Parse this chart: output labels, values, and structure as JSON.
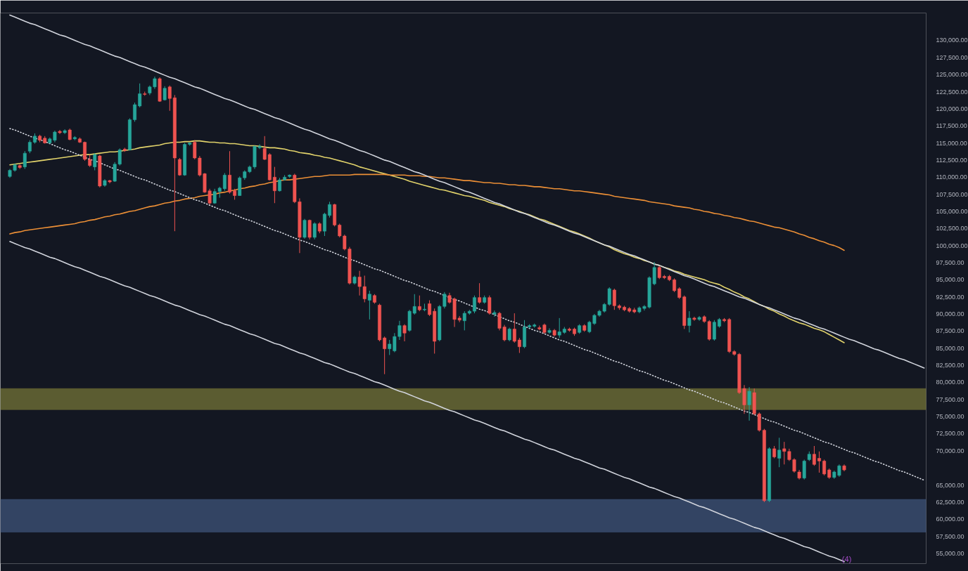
{
  "chart_data": {
    "type": "candlestick",
    "categories": [
      null,
      null,
      null,
      null,
      null,
      null,
      null,
      null,
      null,
      null,
      null,
      null,
      null,
      null,
      null,
      null,
      null,
      null,
      null,
      null,
      null,
      null,
      null,
      null,
      null,
      null,
      null,
      null,
      null,
      null,
      null,
      null,
      null,
      null,
      null,
      null,
      null,
      null,
      null,
      null,
      null,
      null,
      null,
      null,
      null,
      null,
      null,
      null,
      null,
      null,
      null,
      null,
      null,
      null,
      null,
      null,
      null,
      null,
      null,
      null,
      null,
      null,
      null,
      null,
      null,
      null,
      null,
      null,
      null,
      null,
      null,
      null,
      null,
      null,
      null,
      null,
      null,
      null,
      null,
      null,
      null,
      null,
      null,
      null,
      null,
      null,
      null,
      null,
      null,
      null,
      null,
      null,
      null,
      null,
      null,
      null,
      null,
      null,
      null,
      null,
      null,
      null,
      null,
      null,
      null,
      null,
      null,
      null,
      null,
      null,
      null,
      null,
      null,
      null,
      null,
      null,
      null,
      null,
      null,
      null,
      null,
      null,
      null,
      null,
      null,
      null,
      null,
      null,
      null,
      null,
      null,
      null,
      null,
      null,
      null,
      null,
      null,
      null,
      null,
      null,
      null,
      null,
      null,
      null,
      null,
      null,
      null,
      null,
      null,
      null,
      null,
      null,
      null,
      null,
      null,
      null,
      null,
      null,
      null,
      null,
      null,
      null,
      null,
      null,
      null,
      null,
      null,
      null,
      null,
      null,
      null,
      null,
      null,
      null,
      null,
      null,
      null,
      null,
      null,
      null,
      null,
      null,
      null,
      null
    ],
    "ohlc": [
      [
        110100,
        111200,
        109900,
        111000
      ],
      [
        111000,
        112000,
        110800,
        111800
      ],
      [
        111700,
        111900,
        111200,
        111400
      ],
      [
        111500,
        113800,
        111200,
        113500
      ],
      [
        113800,
        115400,
        113500,
        115100
      ],
      [
        115100,
        116400,
        114900,
        116000
      ],
      [
        116000,
        116200,
        115100,
        115400
      ],
      [
        115700,
        116000,
        114900,
        115000
      ],
      [
        115000,
        115800,
        114900,
        115600
      ],
      [
        115400,
        116800,
        115100,
        116600
      ],
      [
        116700,
        116900,
        116300,
        116500
      ],
      [
        116500,
        117000,
        116300,
        116800
      ],
      [
        116900,
        117100,
        115400,
        115500
      ],
      [
        115600,
        116000,
        115400,
        115800
      ],
      [
        115600,
        115800,
        115000,
        115100
      ],
      [
        115100,
        115200,
        112400,
        112600
      ],
      [
        112600,
        113300,
        111500,
        111700
      ],
      [
        111500,
        113500,
        111000,
        113300
      ],
      [
        113100,
        113300,
        108500,
        108700
      ],
      [
        108800,
        109700,
        108600,
        109500
      ],
      [
        109500,
        109600,
        109100,
        109300
      ],
      [
        109400,
        112200,
        109300,
        111900
      ],
      [
        111900,
        114200,
        111700,
        114000
      ],
      [
        114100,
        114300,
        113700,
        113900
      ],
      [
        114000,
        118600,
        113900,
        118400
      ],
      [
        118400,
        120900,
        118100,
        120600
      ],
      [
        120400,
        123700,
        120200,
        122200
      ],
      [
        122200,
        122500,
        121900,
        122100
      ],
      [
        122300,
        123400,
        122000,
        123200
      ],
      [
        123200,
        124700,
        122900,
        124400
      ],
      [
        124400,
        124600,
        121000,
        121100
      ],
      [
        121300,
        123300,
        121200,
        123000
      ],
      [
        123200,
        123400,
        119700,
        121500
      ],
      [
        121600,
        122000,
        102100,
        112800
      ],
      [
        112600,
        112800,
        110200,
        110300
      ],
      [
        110300,
        115000,
        110200,
        114800
      ],
      [
        114800,
        115100,
        114600,
        115000
      ],
      [
        115100,
        115400,
        112600,
        112800
      ],
      [
        112800,
        113100,
        110100,
        110300
      ],
      [
        110500,
        110600,
        107700,
        107800
      ],
      [
        108000,
        108300,
        106000,
        106200
      ],
      [
        106200,
        108300,
        106100,
        107900
      ],
      [
        107900,
        108600,
        107000,
        108400
      ],
      [
        108300,
        110600,
        108000,
        110300
      ],
      [
        110300,
        113800,
        107600,
        107800
      ],
      [
        108000,
        108300,
        106700,
        107300
      ],
      [
        107300,
        110100,
        107300,
        109900
      ],
      [
        109900,
        111000,
        109600,
        110800
      ],
      [
        110800,
        111700,
        110600,
        111500
      ],
      [
        111500,
        114600,
        111200,
        114500
      ],
      [
        114300,
        114800,
        114100,
        114500
      ],
      [
        114200,
        116000,
        112500,
        112600
      ],
      [
        113300,
        113500,
        109500,
        109600
      ],
      [
        110000,
        111500,
        106200,
        108000
      ],
      [
        108000,
        109900,
        107900,
        109600
      ],
      [
        109600,
        110300,
        109500,
        110000
      ],
      [
        110100,
        110400,
        109900,
        110300
      ],
      [
        110300,
        110500,
        106200,
        106400
      ],
      [
        106400,
        106900,
        98900,
        101200
      ],
      [
        101200,
        103900,
        101000,
        103700
      ],
      [
        103700,
        103800,
        100900,
        101200
      ],
      [
        101200,
        103400,
        100900,
        103200
      ],
      [
        103200,
        103400,
        101800,
        102100
      ],
      [
        102100,
        104800,
        101400,
        104600
      ],
      [
        104400,
        106400,
        104100,
        106000
      ],
      [
        106000,
        106100,
        102800,
        103000
      ],
      [
        103000,
        103200,
        101200,
        101400
      ],
      [
        101400,
        101600,
        99300,
        99500
      ],
      [
        99500,
        99800,
        94300,
        94500
      ],
      [
        94500,
        95600,
        94300,
        95400
      ],
      [
        95400,
        96300,
        92700,
        94000
      ],
      [
        94000,
        95600,
        91700,
        92200
      ],
      [
        92000,
        93400,
        89200,
        92900
      ],
      [
        92700,
        92900,
        91500,
        91700
      ],
      [
        91300,
        91500,
        86000,
        86200
      ],
      [
        86500,
        86700,
        81200,
        84900
      ],
      [
        84900,
        86200,
        84000,
        85600
      ],
      [
        84600,
        87200,
        84400,
        86700
      ],
      [
        86700,
        89000,
        86200,
        88300
      ],
      [
        88300,
        88500,
        86000,
        87200
      ],
      [
        87600,
        90600,
        87400,
        90400
      ],
      [
        90100,
        92900,
        89900,
        91100
      ],
      [
        91100,
        92700,
        90400,
        90600
      ],
      [
        90600,
        91500,
        90400,
        90700
      ],
      [
        91500,
        92000,
        89700,
        89900
      ],
      [
        90400,
        90800,
        84200,
        86000
      ],
      [
        86200,
        91300,
        86000,
        91100
      ],
      [
        91100,
        93200,
        90800,
        92900
      ],
      [
        92700,
        93100,
        91500,
        91700
      ],
      [
        92200,
        92400,
        88100,
        89200
      ],
      [
        89400,
        89700,
        88800,
        89100
      ],
      [
        89000,
        90400,
        87600,
        90100
      ],
      [
        90100,
        90600,
        89900,
        90400
      ],
      [
        90400,
        92700,
        90100,
        92400
      ],
      [
        92400,
        94500,
        91500,
        91700
      ],
      [
        91700,
        92700,
        91500,
        92400
      ],
      [
        92400,
        92700,
        89900,
        90100
      ],
      [
        90000,
        90500,
        89600,
        90200
      ],
      [
        90100,
        90300,
        87600,
        87900
      ],
      [
        88100,
        88400,
        86000,
        86200
      ],
      [
        86200,
        88000,
        86000,
        87800
      ],
      [
        87800,
        90100,
        85800,
        86000
      ],
      [
        86200,
        86500,
        84300,
        85200
      ],
      [
        85200,
        89100,
        85000,
        88100
      ],
      [
        88100,
        88500,
        87900,
        88300
      ],
      [
        88200,
        88600,
        88000,
        88400
      ],
      [
        88000,
        88300,
        87600,
        87800
      ],
      [
        88400,
        88600,
        87100,
        87300
      ],
      [
        87300,
        87900,
        87100,
        87600
      ],
      [
        87600,
        87800,
        86700,
        86900
      ],
      [
        86900,
        89400,
        86500,
        87400
      ],
      [
        87300,
        88100,
        87100,
        87800
      ],
      [
        87800,
        88000,
        87400,
        87600
      ],
      [
        87800,
        88000,
        86800,
        87100
      ],
      [
        87300,
        88500,
        87100,
        88300
      ],
      [
        88300,
        88500,
        87400,
        87600
      ],
      [
        87400,
        89000,
        87200,
        88800
      ],
      [
        88600,
        90000,
        88400,
        89800
      ],
      [
        89800,
        90600,
        89600,
        90400
      ],
      [
        90400,
        91600,
        90200,
        91400
      ],
      [
        91400,
        93900,
        91200,
        93700
      ],
      [
        93500,
        93700,
        90600,
        91200
      ],
      [
        91200,
        91400,
        90600,
        90900
      ],
      [
        91000,
        91200,
        90400,
        90600
      ],
      [
        90800,
        91000,
        90200,
        90400
      ],
      [
        90600,
        90900,
        90100,
        90300
      ],
      [
        90300,
        91100,
        90100,
        90900
      ],
      [
        90800,
        91300,
        90500,
        91100
      ],
      [
        91000,
        95500,
        90800,
        95300
      ],
      [
        94400,
        97600,
        94200,
        96800
      ],
      [
        96800,
        97000,
        95100,
        95300
      ],
      [
        95500,
        95700,
        95100,
        95300
      ],
      [
        95500,
        95700,
        94800,
        95000
      ],
      [
        95000,
        95200,
        93200,
        93400
      ],
      [
        93700,
        93900,
        92200,
        92400
      ],
      [
        92500,
        92700,
        87800,
        88300
      ],
      [
        88300,
        90400,
        87300,
        89400
      ],
      [
        89400,
        89600,
        89000,
        89200
      ],
      [
        89200,
        89700,
        89000,
        89500
      ],
      [
        89600,
        89800,
        88700,
        88900
      ],
      [
        88900,
        89100,
        86100,
        86300
      ],
      [
        86300,
        89100,
        86100,
        88800
      ],
      [
        88200,
        89400,
        88000,
        89200
      ],
      [
        89200,
        89400,
        88800,
        89000
      ],
      [
        89200,
        89400,
        84300,
        84500
      ],
      [
        84500,
        84700,
        83900,
        84100
      ],
      [
        84100,
        84300,
        78300,
        78500
      ],
      [
        79100,
        79600,
        75400,
        76700
      ],
      [
        76700,
        79300,
        74400,
        78700
      ],
      [
        78500,
        79100,
        75200,
        75400
      ],
      [
        75400,
        75600,
        72800,
        73000
      ],
      [
        73000,
        73200,
        62500,
        62700
      ],
      [
        62700,
        70500,
        62500,
        70300
      ],
      [
        70300,
        70700,
        68900,
        69100
      ],
      [
        68900,
        71900,
        67600,
        70100
      ],
      [
        70300,
        71300,
        68000,
        69900
      ],
      [
        69900,
        70300,
        68500,
        68700
      ],
      [
        68700,
        68900,
        66800,
        67000
      ],
      [
        66900,
        67200,
        65800,
        66000
      ],
      [
        66000,
        68700,
        65800,
        68500
      ],
      [
        68700,
        69900,
        68500,
        69500
      ],
      [
        69500,
        70700,
        67800,
        68000
      ],
      [
        68900,
        69900,
        66800,
        68500
      ],
      [
        68500,
        68700,
        66400,
        66600
      ],
      [
        67200,
        67400,
        65900,
        66100
      ],
      [
        66100,
        67100,
        65900,
        66900
      ],
      [
        66400,
        68000,
        66200,
        67800
      ],
      [
        67800,
        68000,
        67000,
        67200
      ],
      null,
      null,
      null,
      null,
      null,
      null,
      null,
      null,
      null,
      null,
      null,
      null,
      null,
      null,
      null,
      null
    ],
    "colors": [
      "#26a69a",
      "#26a69a",
      "#ef5350",
      "#26a69a",
      "#26a69a",
      "#26a69a",
      "#ef5350",
      "#ef5350",
      "#26a69a",
      "#26a69a",
      "#ef5350",
      "#26a69a",
      "#ef5350",
      "#26a69a",
      "#ef5350",
      "#ef5350",
      "#ef5350",
      "#26a69a",
      "#ef5350",
      "#26a69a",
      "#ef5350",
      "#26a69a",
      "#26a69a",
      "#ef5350",
      "#26a69a",
      "#26a69a",
      "#26a69a",
      "#ef5350",
      "#26a69a",
      "#26a69a",
      "#ef5350",
      "#26a69a",
      "#ef5350",
      "#ef5350",
      "#ef5350",
      "#26a69a",
      "#26a69a",
      "#ef5350",
      "#ef5350",
      "#ef5350",
      "#ef5350",
      "#26a69a",
      "#26a69a",
      "#26a69a",
      "#ef5350",
      "#ef5350",
      "#26a69a",
      "#26a69a",
      "#26a69a",
      "#26a69a",
      "#26a69a",
      "#ef5350",
      "#ef5350",
      "#ef5350",
      "#26a69a",
      "#26a69a",
      "#26a69a",
      "#ef5350",
      "#ef5350",
      "#26a69a",
      "#ef5350",
      "#26a69a",
      "#ef5350",
      "#26a69a",
      "#26a69a",
      "#ef5350",
      "#ef5350",
      "#ef5350",
      "#ef5350",
      "#26a69a",
      "#ef5350",
      "#ef5350",
      "#26a69a",
      "#ef5350",
      "#ef5350",
      "#ef5350",
      "#26a69a",
      "#26a69a",
      "#26a69a",
      "#ef5350",
      "#26a69a",
      "#26a69a",
      "#ef5350",
      "#26a69a",
      "#ef5350",
      "#ef5350",
      "#26a69a",
      "#26a69a",
      "#ef5350",
      "#ef5350",
      "#ef5350",
      "#26a69a",
      "#26a69a",
      "#26a69a",
      "#ef5350",
      "#26a69a",
      "#ef5350",
      "#26a69a",
      "#ef5350",
      "#ef5350",
      "#26a69a",
      "#ef5350",
      "#ef5350",
      "#26a69a",
      "#26a69a",
      "#26a69a",
      "#ef5350",
      "#ef5350",
      "#26a69a",
      "#ef5350",
      "#26a69a",
      "#26a69a",
      "#ef5350",
      "#ef5350",
      "#26a69a",
      "#ef5350",
      "#26a69a",
      "#26a69a",
      "#26a69a",
      "#26a69a",
      "#26a69a",
      "#ef5350",
      "#ef5350",
      "#ef5350",
      "#ef5350",
      "#ef5350",
      "#26a69a",
      "#26a69a",
      "#26a69a",
      "#26a69a",
      "#ef5350",
      "#ef5350",
      "#ef5350",
      "#ef5350",
      "#ef5350",
      "#ef5350",
      "#26a69a",
      "#ef5350",
      "#26a69a",
      "#ef5350",
      "#ef5350",
      "#26a69a",
      "#26a69a",
      "#ef5350",
      "#ef5350",
      "#ef5350",
      "#ef5350",
      "#ef5350",
      "#26a69a",
      "#ef5350",
      "#ef5350",
      "#ef5350",
      "#26a69a",
      "#ef5350",
      "#26a69a",
      "#ef5350",
      "#ef5350",
      "#ef5350",
      "#ef5350",
      "#26a69a",
      "#26a69a",
      "#ef5350",
      "#ef5350",
      "#ef5350",
      "#ef5350",
      "#26a69a",
      "#26a69a",
      "#ef5350",
      null,
      null,
      null,
      null,
      null,
      null,
      null,
      null,
      null,
      null,
      null,
      null,
      null,
      null,
      null,
      null
    ],
    "series": [
      {
        "type": "line",
        "color": "#e2d36b",
        "values": [
          111800,
          111900,
          112000,
          112100,
          112200,
          112300,
          112400,
          112500,
          112600,
          112700,
          112800,
          112900,
          113000,
          113100,
          113200,
          113300,
          113300,
          113400,
          113500,
          113600,
          113700,
          113700,
          113800,
          113900,
          114000,
          114100,
          114300,
          114400,
          114500,
          114600,
          114700,
          114900,
          115000,
          115100,
          115100,
          115200,
          115200,
          115300,
          115300,
          115200,
          115100,
          115100,
          115000,
          115000,
          114900,
          114900,
          114800,
          114700,
          114600,
          114600,
          114500,
          114400,
          114300,
          114300,
          114200,
          114100,
          113900,
          113800,
          113600,
          113500,
          113400,
          113200,
          113100,
          112900,
          112800,
          112600,
          112400,
          112200,
          112000,
          111800,
          111500,
          111300,
          111100,
          110900,
          110700,
          110500,
          110300,
          110100,
          109900,
          109700,
          109400,
          109200,
          109000,
          108800,
          108600,
          108400,
          108200,
          108100,
          107900,
          107700,
          107500,
          107300,
          107200,
          107000,
          106800,
          106600,
          106300,
          106100,
          105900,
          105700,
          105400,
          105200,
          105000,
          104700,
          104500,
          104200,
          103900,
          103700,
          103400,
          103100,
          102800,
          102500,
          102200,
          102000,
          101700,
          101400,
          101100,
          100700,
          100400,
          100100,
          99800,
          99400,
          99100,
          98800,
          98600,
          98300,
          98100,
          97800,
          97600,
          97300,
          97100,
          96800,
          96600,
          96300,
          96100,
          95800,
          95600,
          95400,
          95200,
          95000,
          94700,
          94500,
          94300,
          93900,
          93600,
          93200,
          92900,
          92500,
          92200,
          91800,
          91400,
          91100,
          90700,
          90400,
          90000,
          89700,
          89300,
          89000,
          88700,
          88500,
          88200,
          87900,
          87700,
          87400,
          87000,
          86600,
          86200,
          85800,
          null,
          null,
          null,
          null,
          null,
          null,
          null,
          null,
          null,
          null,
          null,
          null,
          null,
          null,
          null,
          null
        ]
      },
      {
        "type": "line",
        "color": "#ec8f36",
        "values": [
          101700,
          101900,
          102000,
          102200,
          102300,
          102400,
          102500,
          102600,
          102700,
          102800,
          102900,
          103000,
          103100,
          103200,
          103400,
          103500,
          103700,
          103800,
          104000,
          104200,
          104300,
          104500,
          104600,
          104800,
          105000,
          105100,
          105300,
          105500,
          105700,
          105800,
          106000,
          106200,
          106300,
          106500,
          106600,
          106800,
          106900,
          107000,
          107200,
          107300,
          107400,
          107500,
          107700,
          107800,
          108000,
          108100,
          108300,
          108400,
          108600,
          108700,
          108900,
          109000,
          109200,
          109300,
          109500,
          109600,
          109600,
          109700,
          109800,
          109900,
          110000,
          110100,
          110100,
          110200,
          110300,
          110300,
          110300,
          110300,
          110300,
          110400,
          110400,
          110400,
          110400,
          110400,
          110400,
          110400,
          110300,
          110300,
          110300,
          110300,
          110200,
          110200,
          110200,
          110100,
          110100,
          110000,
          109900,
          109900,
          109800,
          109700,
          109600,
          109500,
          109500,
          109400,
          109300,
          109200,
          109200,
          109100,
          109100,
          109000,
          108900,
          108900,
          108800,
          108800,
          108700,
          108600,
          108600,
          108500,
          108400,
          108300,
          108300,
          108200,
          108100,
          108000,
          108000,
          107900,
          107800,
          107700,
          107600,
          107500,
          107400,
          107200,
          107100,
          107000,
          106900,
          106800,
          106700,
          106600,
          106400,
          106300,
          106200,
          106100,
          106000,
          105800,
          105700,
          105600,
          105500,
          105300,
          105200,
          105000,
          104900,
          104700,
          104600,
          104400,
          104300,
          104100,
          104000,
          103800,
          103600,
          103500,
          103300,
          103100,
          102900,
          102700,
          102600,
          102400,
          102200,
          102000,
          101700,
          101500,
          101200,
          101000,
          100700,
          100500,
          100200,
          100000,
          99700,
          99300,
          null,
          null,
          null,
          null,
          null,
          null,
          null,
          null,
          null,
          null,
          null,
          null,
          null,
          null,
          null,
          null
        ]
      },
      {
        "type": "line",
        "color": "#d1d4dc",
        "values": [
          133700,
          133400,
          133100,
          132800,
          132500,
          132300,
          132000,
          131700,
          131400,
          131100,
          130800,
          130600,
          130300,
          130000,
          129700,
          129400,
          129200,
          128900,
          128600,
          128300,
          128000,
          127700,
          127500,
          127200,
          126900,
          126600,
          126300,
          126100,
          125800,
          125500,
          125200,
          124900,
          124600,
          124400,
          124100,
          123800,
          123500,
          123200,
          123000,
          122700,
          122400,
          122100,
          121800,
          121500,
          121300,
          121000,
          120700,
          120400,
          120100,
          119900,
          119600,
          119300,
          119000,
          118700,
          118500,
          118200,
          117900,
          117600,
          117300,
          117000,
          116800,
          116500,
          116200,
          115900,
          115600,
          115400,
          115100,
          114800,
          114500,
          114200,
          113900,
          113700,
          113400,
          113100,
          112800,
          112500,
          112300,
          112000,
          111700,
          111400,
          111100,
          110800,
          110600,
          110300,
          110000,
          109700,
          109400,
          109200,
          108900,
          108600,
          108300,
          108000,
          107800,
          107500,
          107200,
          106900,
          106600,
          106300,
          106100,
          105800,
          105500,
          105200,
          104900,
          104700,
          104400,
          104100,
          103800,
          103500,
          103200,
          103000,
          102700,
          102400,
          102100,
          101800,
          101600,
          101300,
          101000,
          100700,
          100400,
          100100,
          99900,
          99600,
          99300,
          99000,
          98700,
          98500,
          98200,
          97900,
          97600,
          97300,
          97100,
          96800,
          96500,
          96200,
          95900,
          95600,
          95400,
          95100,
          94800,
          94500,
          94200,
          94000,
          93700,
          93400,
          93100,
          92800,
          92500,
          92300,
          92000,
          91700,
          91400,
          91100,
          90900,
          90600,
          90300,
          90000,
          89700,
          89400,
          89200,
          88900,
          88600,
          88300,
          88000,
          87800,
          87500,
          87200,
          86900,
          86600,
          86300,
          86100,
          85800,
          85500,
          85200,
          84900,
          84700,
          84400,
          84100,
          83800,
          83500,
          83300,
          83000,
          82700,
          82400,
          82100
        ]
      },
      {
        "type": "line",
        "color": "#d1d4dc",
        "line_style": "dotted",
        "values": [
          117100,
          116900,
          116600,
          116300,
          116000,
          115700,
          115500,
          115200,
          114900,
          114600,
          114300,
          114000,
          113800,
          113500,
          113200,
          112900,
          112600,
          112400,
          112100,
          111800,
          111500,
          111200,
          111000,
          110700,
          110400,
          110100,
          109800,
          109600,
          109300,
          109000,
          108700,
          108400,
          108100,
          107900,
          107600,
          107300,
          107000,
          106700,
          106500,
          106200,
          105900,
          105600,
          105300,
          105100,
          104800,
          104500,
          104200,
          103900,
          103700,
          103400,
          103100,
          102800,
          102500,
          102200,
          102000,
          101700,
          101400,
          101100,
          100800,
          100600,
          100300,
          100000,
          99700,
          99400,
          99200,
          98900,
          98600,
          98300,
          98000,
          97800,
          97500,
          97200,
          96900,
          96600,
          96400,
          96100,
          95800,
          95500,
          95200,
          94900,
          94700,
          94400,
          94100,
          93800,
          93500,
          93300,
          93000,
          92700,
          92400,
          92100,
          91900,
          91600,
          91300,
          91000,
          90700,
          90500,
          90200,
          89900,
          89600,
          89300,
          89000,
          88800,
          88500,
          88200,
          87900,
          87600,
          87400,
          87100,
          86800,
          86500,
          86200,
          86000,
          85700,
          85400,
          85100,
          84800,
          84600,
          84300,
          84000,
          83700,
          83400,
          83100,
          82900,
          82600,
          82300,
          82000,
          81700,
          81500,
          81200,
          80900,
          80600,
          80300,
          80100,
          79800,
          79500,
          79200,
          78900,
          78700,
          78400,
          78100,
          77800,
          77500,
          77200,
          77000,
          76700,
          76400,
          76100,
          75800,
          75600,
          75300,
          75000,
          74700,
          74400,
          74200,
          73900,
          73600,
          73300,
          73000,
          72800,
          72500,
          72200,
          71900,
          71600,
          71300,
          71100,
          70800,
          70500,
          70200,
          69900,
          69700,
          69400,
          69100,
          68800,
          68500,
          68300,
          68000,
          67700,
          67400,
          67100,
          66900,
          66600,
          66300,
          66000,
          65700
        ]
      },
      {
        "type": "line",
        "color": "#d1d4dc",
        "values": [
          100600,
          100300,
          100000,
          99700,
          99500,
          99200,
          98900,
          98600,
          98300,
          98100,
          97800,
          97500,
          97200,
          96900,
          96700,
          96400,
          96100,
          95800,
          95500,
          95300,
          95000,
          94700,
          94400,
          94100,
          93900,
          93600,
          93300,
          93000,
          92700,
          92500,
          92200,
          91900,
          91600,
          91300,
          91100,
          90800,
          90500,
          90200,
          89900,
          89700,
          89400,
          89100,
          88800,
          88500,
          88300,
          88000,
          87700,
          87400,
          87100,
          86900,
          86600,
          86300,
          86000,
          85700,
          85500,
          85200,
          84900,
          84600,
          84300,
          84100,
          83800,
          83500,
          83200,
          82900,
          82700,
          82400,
          82100,
          81800,
          81500,
          81300,
          81000,
          80700,
          80400,
          80100,
          79900,
          79600,
          79300,
          79000,
          78700,
          78500,
          78200,
          77900,
          77600,
          77300,
          77100,
          76800,
          76500,
          76200,
          75900,
          75700,
          75400,
          75100,
          74800,
          74500,
          74300,
          74000,
          73700,
          73400,
          73100,
          72900,
          72600,
          72300,
          72000,
          71700,
          71500,
          71200,
          70900,
          70600,
          70300,
          70100,
          69800,
          69500,
          69200,
          68900,
          68700,
          68400,
          68100,
          67800,
          67500,
          67300,
          67000,
          66700,
          66400,
          66100,
          65900,
          65600,
          65300,
          65000,
          64700,
          64500,
          64200,
          63900,
          63600,
          63300,
          63100,
          62800,
          62500,
          62200,
          61900,
          61700,
          61400,
          61100,
          60800,
          60500,
          60200,
          60000,
          59700,
          59400,
          59100,
          58800,
          58600,
          58300,
          58000,
          57700,
          57400,
          57200,
          56900,
          56600,
          56300,
          56000,
          55800,
          55500,
          55200,
          54900,
          54600,
          54400,
          54100,
          53800,
          null,
          null,
          null,
          null,
          null,
          null,
          null,
          null,
          null,
          null,
          null,
          null,
          null,
          null,
          null,
          null
        ]
      }
    ],
    "bands": [
      {
        "axis": "y",
        "from": 76000,
        "to": 79100,
        "color": "#8c8a3c"
      },
      {
        "axis": "y",
        "from": 58100,
        "to": 62900,
        "color": "#4a6290"
      }
    ],
    "annotations": [
      {
        "text": "(4)",
        "y": 54200
      }
    ],
    "ylim": [
      53500,
      134000
    ],
    "yticks": [
      {
        "value": 55000,
        "label": "55,000.00"
      },
      {
        "value": 57500,
        "label": "57,500.00"
      },
      {
        "value": 60000,
        "label": "60,000.00"
      },
      {
        "value": 62500,
        "label": "62,500.00"
      },
      {
        "value": 65000,
        "label": "65,000.00"
      },
      {
        "value": 70000,
        "label": "70,000.00"
      },
      {
        "value": 72500,
        "label": "72,500.00"
      },
      {
        "value": 75000,
        "label": "75,000.00"
      },
      {
        "value": 77500,
        "label": "77,500.00"
      },
      {
        "value": 80000,
        "label": "80,000.00"
      },
      {
        "value": 82500,
        "label": "82,500.00"
      },
      {
        "value": 85000,
        "label": "85,000.00"
      },
      {
        "value": 87500,
        "label": "87,500.00"
      },
      {
        "value": 90000,
        "label": "90,000.00"
      },
      {
        "value": 92500,
        "label": "92,500.00"
      },
      {
        "value": 95000,
        "label": "95,000.00"
      },
      {
        "value": 97500,
        "label": "97,500.00"
      },
      {
        "value": 100000,
        "label": "100,000.00"
      },
      {
        "value": 102500,
        "label": "102,500.00"
      },
      {
        "value": 105000,
        "label": "105,000.00"
      },
      {
        "value": 107500,
        "label": "107,500.00"
      },
      {
        "value": 110000,
        "label": "110,000.00"
      },
      {
        "value": 112500,
        "label": "112,500.00"
      },
      {
        "value": 115000,
        "label": "115,000.00"
      },
      {
        "value": 117500,
        "label": "117,500.00"
      },
      {
        "value": 120000,
        "label": "120,000.00"
      },
      {
        "value": 122500,
        "label": "122,500.00"
      },
      {
        "value": 125000,
        "label": "125,000.00"
      },
      {
        "value": 127500,
        "label": "127,500.00"
      },
      {
        "value": 130000,
        "label": "130,000.00"
      }
    ]
  }
}
